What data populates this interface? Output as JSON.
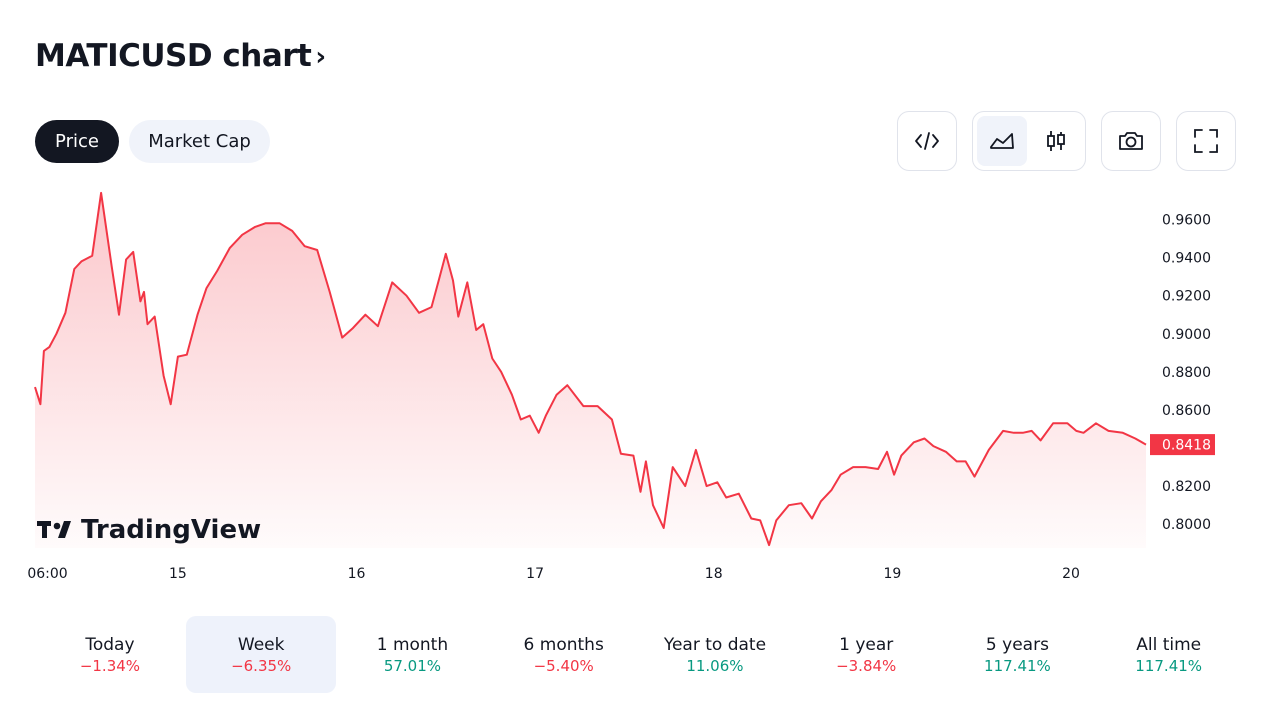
{
  "header": {
    "title": "MATICUSD chart"
  },
  "tabs": [
    {
      "label": "Price",
      "active": true
    },
    {
      "label": "Market Cap",
      "active": false
    }
  ],
  "toolbar": {
    "embed_icon": "embed-code-icon",
    "area_icon": "area-chart-icon",
    "candles_icon": "candlestick-icon",
    "snapshot_icon": "camera-icon",
    "fullscreen_icon": "fullscreen-icon"
  },
  "branding": {
    "logo_text": "TradingView"
  },
  "colors": {
    "line": "#f23645",
    "negative": "#f23645",
    "positive": "#089981",
    "text": "#131722"
  },
  "chart_data": {
    "type": "area",
    "ylim": [
      0.7875,
      0.9755
    ],
    "y_ticks": [
      "0.9600",
      "0.9400",
      "0.9200",
      "0.9000",
      "0.8800",
      "0.8600",
      "0.8200",
      "0.8000"
    ],
    "y_tick_values": [
      0.96,
      0.94,
      0.92,
      0.9,
      0.88,
      0.86,
      0.82,
      0.8
    ],
    "x_ticks": [
      "06:00",
      "15",
      "16",
      "17",
      "18",
      "19",
      "20"
    ],
    "x_tick_values": [
      0.77,
      1.5,
      2.5,
      3.5,
      4.5,
      5.5,
      6.5
    ],
    "xlim": [
      0.7,
      6.92
    ],
    "last_value": 0.8418,
    "last_value_label": "0.8418",
    "series": [
      {
        "x": [
          0.7,
          0.73,
          0.75,
          0.78,
          0.82,
          0.87,
          0.92,
          0.96,
          1.02,
          1.07,
          1.13,
          1.17,
          1.21,
          1.25,
          1.29,
          1.31,
          1.33,
          1.37,
          1.42,
          1.46,
          1.5,
          1.55,
          1.61,
          1.66,
          1.72,
          1.79,
          1.86,
          1.93,
          1.99,
          2.07,
          2.14,
          2.21,
          2.28,
          2.35,
          2.42,
          2.48,
          2.55,
          2.62,
          2.7,
          2.78,
          2.85,
          2.92,
          2.96,
          3.0,
          3.04,
          3.07,
          3.12,
          3.17,
          3.21,
          3.26,
          3.31,
          3.37,
          3.42,
          3.47,
          3.52,
          3.56,
          3.62,
          3.68,
          3.77,
          3.85,
          3.93,
          3.98,
          4.05,
          4.09,
          4.12,
          4.16,
          4.22,
          4.27,
          4.34,
          4.4,
          4.46,
          4.52,
          4.57,
          4.64,
          4.71,
          4.76,
          4.81,
          4.85,
          4.92,
          4.99,
          5.05,
          5.1,
          5.16,
          5.21,
          5.28,
          5.35,
          5.42,
          5.47,
          5.51,
          5.55,
          5.62,
          5.68,
          5.73,
          5.8,
          5.86,
          5.91,
          5.96,
          6.04,
          6.12,
          6.18,
          6.23,
          6.28,
          6.33,
          6.4,
          6.48,
          6.53,
          6.57,
          6.64,
          6.71,
          6.79,
          6.86,
          6.92
        ],
        "values": [
          0.872,
          0.863,
          0.891,
          0.893,
          0.9,
          0.911,
          0.934,
          0.938,
          0.941,
          0.974,
          0.935,
          0.91,
          0.939,
          0.943,
          0.917,
          0.922,
          0.905,
          0.909,
          0.878,
          0.863,
          0.888,
          0.889,
          0.91,
          0.924,
          0.933,
          0.945,
          0.952,
          0.956,
          0.958,
          0.958,
          0.954,
          0.946,
          0.944,
          0.922,
          0.898,
          0.903,
          0.91,
          0.904,
          0.927,
          0.92,
          0.911,
          0.914,
          0.928,
          0.942,
          0.928,
          0.909,
          0.927,
          0.902,
          0.905,
          0.887,
          0.88,
          0.868,
          0.855,
          0.857,
          0.848,
          0.857,
          0.868,
          0.873,
          0.862,
          0.862,
          0.855,
          0.837,
          0.836,
          0.817,
          0.833,
          0.81,
          0.798,
          0.83,
          0.82,
          0.839,
          0.82,
          0.822,
          0.814,
          0.816,
          0.803,
          0.802,
          0.789,
          0.802,
          0.81,
          0.811,
          0.803,
          0.812,
          0.818,
          0.826,
          0.83,
          0.83,
          0.829,
          0.838,
          0.826,
          0.836,
          0.843,
          0.845,
          0.841,
          0.838,
          0.833,
          0.833,
          0.825,
          0.839,
          0.849,
          0.848,
          0.848,
          0.849,
          0.844,
          0.853,
          0.853,
          0.849,
          0.848,
          0.853,
          0.849,
          0.848,
          0.845,
          0.8418
        ]
      }
    ]
  },
  "periods": [
    {
      "label": "Today",
      "value": "−1.34%",
      "trend": "neg",
      "active": false
    },
    {
      "label": "Week",
      "value": "−6.35%",
      "trend": "neg",
      "active": true
    },
    {
      "label": "1 month",
      "value": "57.01%",
      "trend": "pos",
      "active": false
    },
    {
      "label": "6 months",
      "value": "−5.40%",
      "trend": "neg",
      "active": false
    },
    {
      "label": "Year to date",
      "value": "11.06%",
      "trend": "pos",
      "active": false
    },
    {
      "label": "1 year",
      "value": "−3.84%",
      "trend": "neg",
      "active": false
    },
    {
      "label": "5 years",
      "value": "117.41%",
      "trend": "pos",
      "active": false
    },
    {
      "label": "All time",
      "value": "117.41%",
      "trend": "pos",
      "active": false
    }
  ]
}
